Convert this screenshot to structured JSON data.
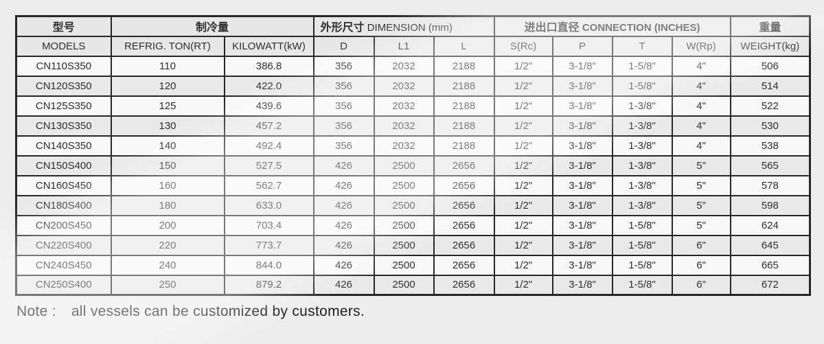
{
  "header": {
    "model": {
      "zh": "型号",
      "en": "MODELS"
    },
    "cooling": {
      "zh": "制冷量",
      "sub": [
        "REFRIG. TON(RT)",
        "KILOWATT(kW)"
      ]
    },
    "dimension": {
      "zh": "外形尺寸",
      "en": "DIMENSION (mm)",
      "sub": [
        "D",
        "L1",
        "L"
      ]
    },
    "connection": {
      "zh": "进出口直径",
      "en": "CONNECTION (INCHES)",
      "sub": [
        "S(Rc)",
        "P",
        "T",
        "W(Rp)"
      ]
    },
    "weight": {
      "zh": "重量",
      "en": "WEIGHT(kg)"
    }
  },
  "rows": [
    [
      "CN110S350",
      "110",
      "386.8",
      "356",
      "2032",
      "2188",
      "1/2\"",
      "3-1/8\"",
      "1-5/8\"",
      "4\"",
      "506"
    ],
    [
      "CN120S350",
      "120",
      "422.0",
      "356",
      "2032",
      "2188",
      "1/2\"",
      "3-1/8\"",
      "1-5/8\"",
      "4\"",
      "514"
    ],
    [
      "CN125S350",
      "125",
      "439.6",
      "356",
      "2032",
      "2188",
      "1/2\"",
      "3-1/8\"",
      "1-3/8\"",
      "4\"",
      "522"
    ],
    [
      "CN130S350",
      "130",
      "457.2",
      "356",
      "2032",
      "2188",
      "1/2\"",
      "3-1/8\"",
      "1-3/8\"",
      "4\"",
      "530"
    ],
    [
      "CN140S350",
      "140",
      "492.4",
      "356",
      "2032",
      "2188",
      "1/2\"",
      "3-1/8\"",
      "1-3/8\"",
      "4\"",
      "538"
    ],
    [
      "CN150S400",
      "150",
      "527.5",
      "426",
      "2500",
      "2656",
      "1/2\"",
      "3-1/8\"",
      "1-3/8\"",
      "5\"",
      "565"
    ],
    [
      "CN160S450",
      "160",
      "562.7",
      "426",
      "2500",
      "2656",
      "1/2\"",
      "3-1/8\"",
      "1-3/8\"",
      "5\"",
      "578"
    ],
    [
      "CN180S400",
      "180",
      "633.0",
      "426",
      "2500",
      "2656",
      "1/2\"",
      "3-1/8\"",
      "1-3/8\"",
      "5\"",
      "598"
    ],
    [
      "CN200S450",
      "200",
      "703.4",
      "426",
      "2500",
      "2656",
      "1/2\"",
      "3-1/8\"",
      "1-5/8\"",
      "5\"",
      "624"
    ],
    [
      "CN220S400",
      "220",
      "773.7",
      "426",
      "2500",
      "2656",
      "1/2\"",
      "3-1/8\"",
      "1-5/8\"",
      "6\"",
      "645"
    ],
    [
      "CN240S450",
      "240",
      "844.0",
      "426",
      "2500",
      "2656",
      "1/2\"",
      "3-1/8\"",
      "1-5/8\"",
      "6\"",
      "665"
    ],
    [
      "CN250S400",
      "250",
      "879.2",
      "426",
      "2500",
      "2656",
      "1/2\"",
      "3-1/8\"",
      "1-5/8\"",
      "6\"",
      "672"
    ]
  ],
  "note": {
    "prefix": "Note :",
    "text": "all vessels can be customized by customers."
  },
  "colors": {
    "border": "#262626",
    "row_light": "#f8f8f8",
    "row_dark": "#e9e9e9",
    "header_bg": "#e7e7e7",
    "text": "#2e2e2e",
    "page_bg": "#ededed"
  }
}
